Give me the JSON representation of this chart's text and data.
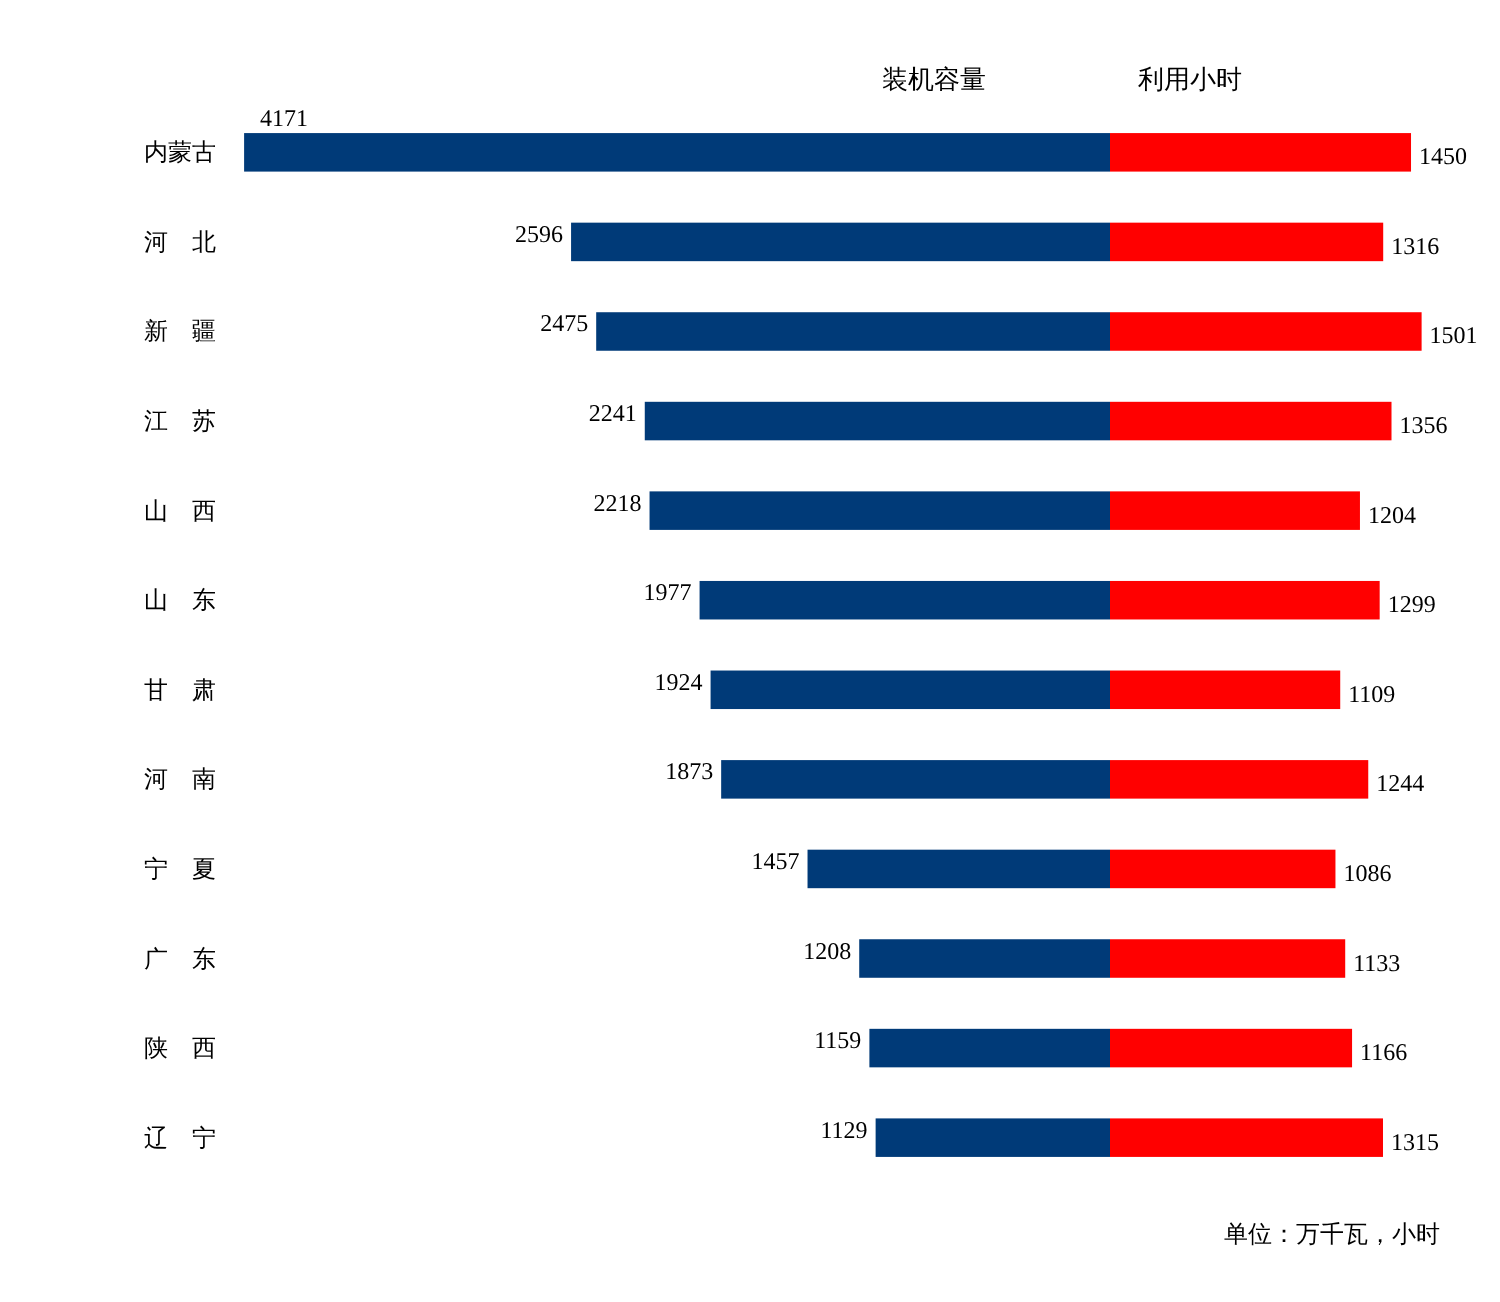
{
  "chart_data": [
    {
      "type": "bar",
      "orientation": "horizontal",
      "title": "装机容量",
      "categories": [
        "内蒙古",
        "河　北",
        "新　疆",
        "江　苏",
        "山　西",
        "山　东",
        "甘　肃",
        "河　南",
        "宁　夏",
        "广　东",
        "陕　西",
        "辽　宁"
      ],
      "values": [
        4171,
        2596,
        2475,
        2241,
        2218,
        1977,
        1924,
        1873,
        1457,
        1208,
        1159,
        1129
      ],
      "color": "#003a78",
      "xlim": [
        4171,
        0
      ],
      "data_labels": true,
      "tick_labels": "y"
    },
    {
      "type": "bar",
      "orientation": "horizontal",
      "title": "利用小时",
      "categories": [
        null,
        null,
        null,
        null,
        null,
        null,
        null,
        null,
        null,
        null,
        null,
        null
      ],
      "values": [
        1450,
        1316,
        1501,
        1356,
        1204,
        1299,
        1109,
        1244,
        1086,
        1133,
        1166,
        1315
      ],
      "color": "#ff0000",
      "xlim": [
        0,
        1501
      ],
      "data_labels": true,
      "annotations": [
        "单位：万千瓦，小时"
      ]
    }
  ]
}
